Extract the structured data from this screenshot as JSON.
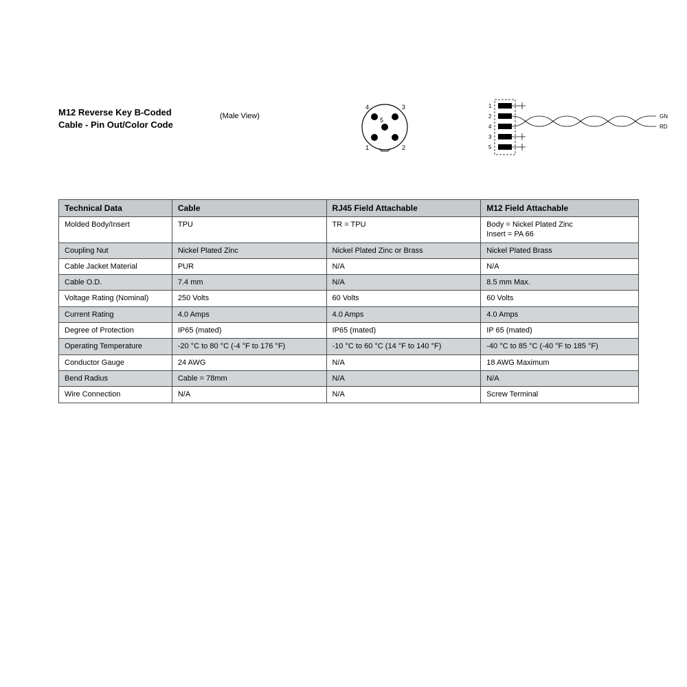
{
  "header": {
    "title_line1": "M12 Reverse Key B-Coded",
    "title_line2": "Cable - Pin Out/Color Code",
    "male_view": "(Male View)"
  },
  "pin_diagram": {
    "labels": {
      "p1": "1",
      "p2": "2",
      "p3": "3",
      "p4": "4",
      "p5": "5"
    }
  },
  "wire_diagram": {
    "row_labels": {
      "r1": "1",
      "r2": "2",
      "r3": "4",
      "r4": "3",
      "r5": "5"
    },
    "end_labels": {
      "gn": "GN",
      "rd": "RD"
    }
  },
  "table": {
    "headers": [
      "Technical Data",
      "Cable",
      "RJ45 Field Attachable",
      "M12 Field Attachable"
    ],
    "rows": [
      {
        "shade": false,
        "cells": [
          "Molded Body/Insert",
          "TPU",
          "TR = TPU",
          "Body = Nickel Plated Zinc\nInsert = PA 66"
        ]
      },
      {
        "shade": true,
        "cells": [
          "Coupling Nut",
          "Nickel Plated Zinc",
          "Nickel Plated Zinc or Brass",
          "Nickel Plated Brass"
        ]
      },
      {
        "shade": false,
        "cells": [
          "Cable Jacket Material",
          "PUR",
          "N/A",
          "N/A"
        ]
      },
      {
        "shade": true,
        "cells": [
          "Cable O.D.",
          "7.4 mm",
          "N/A",
          "8.5 mm Max."
        ]
      },
      {
        "shade": false,
        "cells": [
          "Voltage Rating (Nominal)",
          "250 Volts",
          "60 Volts",
          "60 Volts"
        ]
      },
      {
        "shade": true,
        "cells": [
          "Current Rating",
          "4.0 Amps",
          "4.0 Amps",
          "4.0 Amps"
        ]
      },
      {
        "shade": false,
        "cells": [
          "Degree of Protection",
          "IP65 (mated)",
          "IP65 (mated)",
          "IP 65 (mated)"
        ]
      },
      {
        "shade": true,
        "cells": [
          "Operating Temperature",
          "-20 °C to 80 °C (-4 °F to 176 °F)",
          "-10 °C to 60 °C (14 °F to 140 °F)",
          "-40 °C to 85 °C (-40 °F to 185 °F)"
        ]
      },
      {
        "shade": false,
        "cells": [
          "Conductor Gauge",
          "24  AWG",
          "N/A",
          "18 AWG Maximum"
        ]
      },
      {
        "shade": true,
        "cells": [
          "Bend Radius",
          "Cable = 78mm",
          "N/A",
          "N/A"
        ]
      },
      {
        "shade": false,
        "cells": [
          "Wire Connection",
          "N/A",
          "N/A",
          "Screw Terminal"
        ]
      }
    ]
  },
  "colors": {
    "header_bg": "#c8cbce",
    "row_grey": "#d2d5d8",
    "border": "#4a4a4a",
    "text": "#000000",
    "bg": "#ffffff"
  }
}
